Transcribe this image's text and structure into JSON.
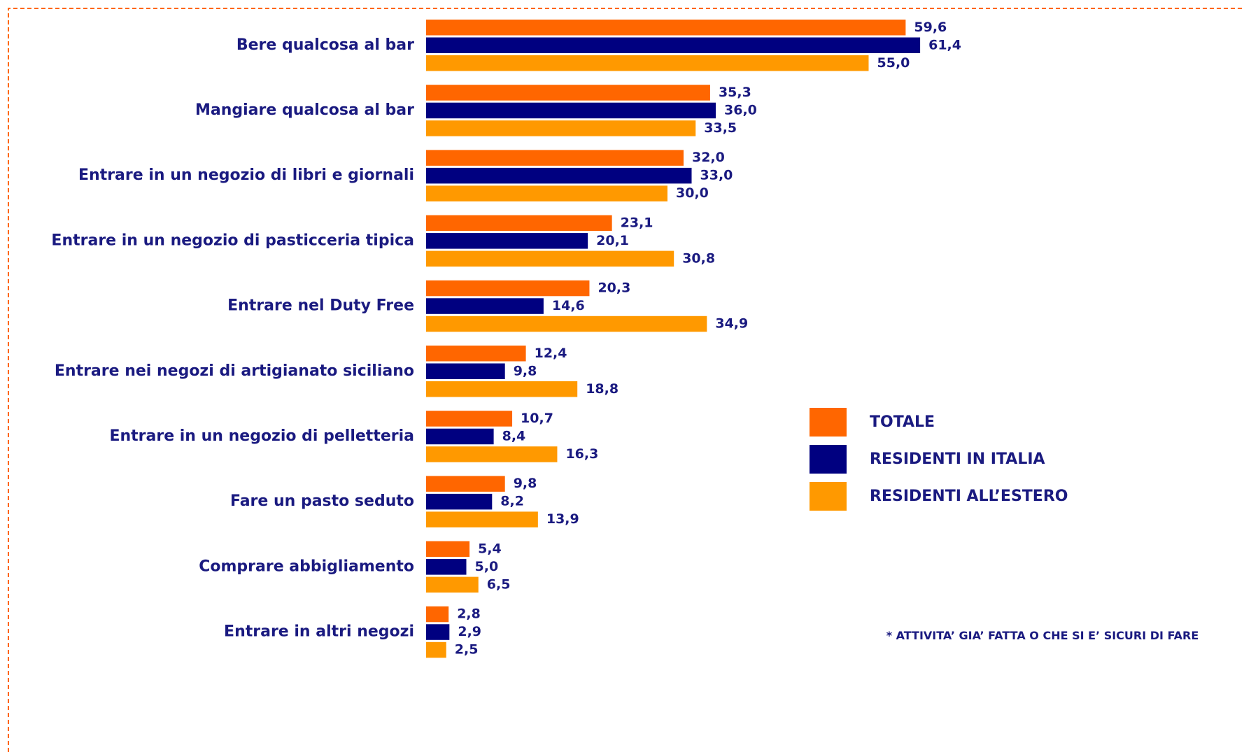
{
  "chart_data": {
    "type": "bar",
    "orientation": "horizontal",
    "categories": [
      "Bere qualcosa al bar",
      "Mangiare qualcosa al bar",
      "Entrare in un negozio di libri e giornali",
      "Entrare in un negozio di pasticceria tipica",
      "Entrare nel Duty Free",
      "Entrare nei negozi di artigianato siciliano",
      "Entrare in un negozio di pelletteria",
      "Fare un pasto seduto",
      "Comprare abbigliamento",
      "Entrare in altri negozi"
    ],
    "series": [
      {
        "name": "TOTALE",
        "color": "#ff6600",
        "values": [
          59.6,
          35.3,
          32.0,
          23.1,
          20.3,
          12.4,
          10.7,
          9.8,
          5.4,
          2.8
        ],
        "value_labels": [
          "59,6",
          "35,3",
          "32,0",
          "23,1",
          "20,3",
          "12,4",
          "10,7",
          "9,8",
          "5,4",
          "2,8"
        ]
      },
      {
        "name": "RESIDENTI IN ITALIA",
        "color": "#000080",
        "values": [
          61.4,
          36.0,
          33.0,
          20.1,
          14.6,
          9.8,
          8.4,
          8.2,
          5.0,
          2.9
        ],
        "value_labels": [
          "61,4",
          "36,0",
          "33,0",
          "20,1",
          "14,6",
          "9,8",
          "8,4",
          "8,2",
          "5,0",
          "2,9"
        ]
      },
      {
        "name": "RESIDENTI ALL’ESTERO",
        "color": "#ff9900",
        "values": [
          55.0,
          33.5,
          30.0,
          30.8,
          34.9,
          18.8,
          16.3,
          13.9,
          6.5,
          2.5
        ],
        "value_labels": [
          "55,0",
          "33,5",
          "30,0",
          "30,8",
          "34,9",
          "18,8",
          "16,3",
          "13,9",
          "6,5",
          "2,5"
        ]
      }
    ],
    "legend": "right",
    "annotation": "* ATTIVITA’ GIA’ FATTA O CHE SI E’ SICURI DI FARE"
  }
}
